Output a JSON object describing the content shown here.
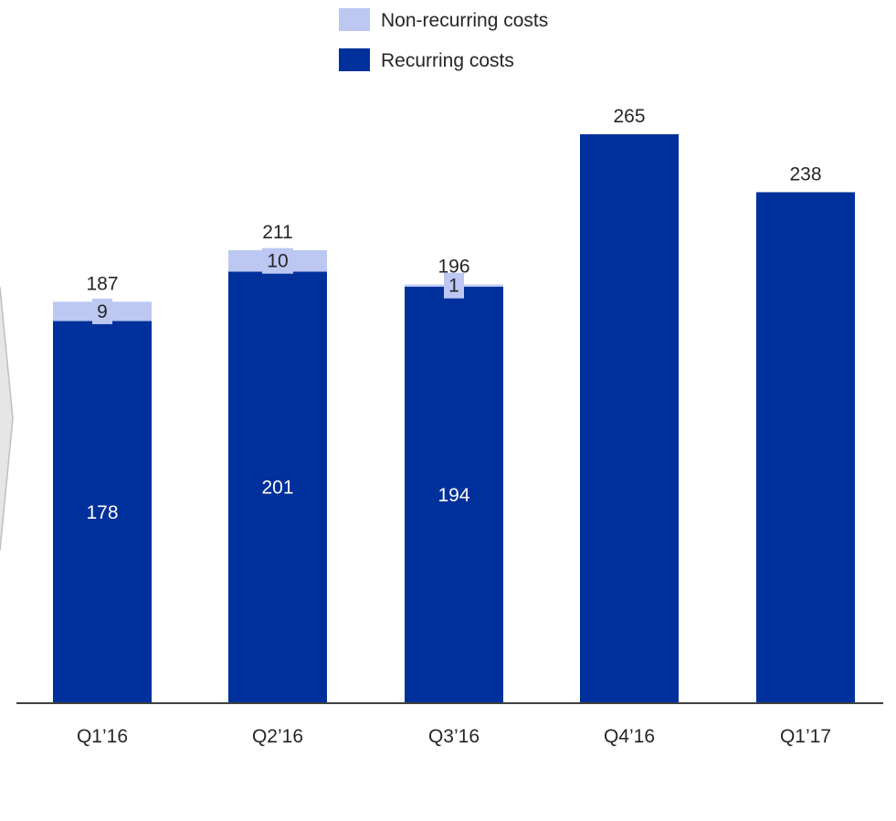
{
  "chart_data": {
    "type": "bar",
    "stacked": true,
    "categories": [
      "Q1’16",
      "Q2’16",
      "Q3’16",
      "Q4’16",
      "Q1’17"
    ],
    "series": [
      {
        "name": "Recurring costs",
        "values": [
          178,
          201,
          194,
          265,
          238
        ],
        "color": "#00309b"
      },
      {
        "name": "Non-recurring costs",
        "values": [
          9,
          10,
          1,
          0,
          0
        ],
        "color": "#bcc8f2"
      }
    ],
    "totals": [
      187,
      211,
      196,
      265,
      238
    ],
    "segment_labels": {
      "recurring": [
        "178",
        "201",
        "194",
        "",
        ""
      ],
      "non_recurring": [
        "9",
        "10",
        "1",
        "",
        ""
      ]
    },
    "total_labels": [
      "187",
      "211",
      "196",
      "265",
      "238"
    ],
    "ylim": [
      0,
      265
    ],
    "legend": [
      "Non-recurring costs",
      "Recurring costs"
    ],
    "legend_position": "top-center",
    "grid": false
  }
}
